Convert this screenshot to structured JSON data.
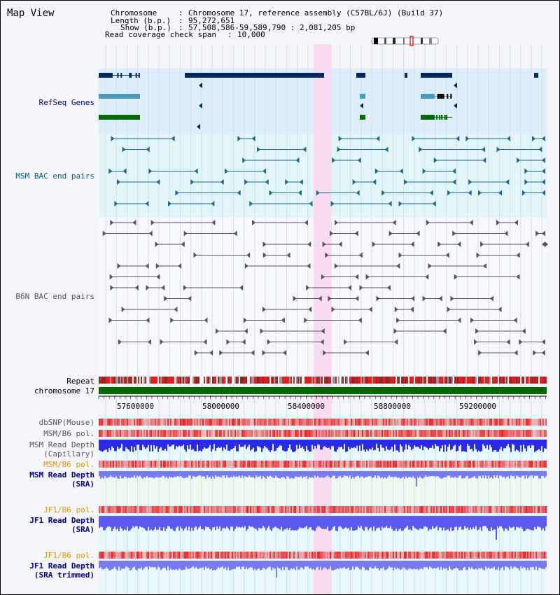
{
  "header": {
    "title": "Map View",
    "chromosome_label": "Chromosome",
    "chromosome_value": "Chromosome 17, reference assembly (C57BL/6J) (Build 37)",
    "length_label": "Length (b.p.)",
    "length_value": "95,272,651",
    "show_label": "Show (b.p.)",
    "show_value": "57,508,586-59,589,790 : 2,081,205 bp",
    "span_label": "Read coverage check span",
    "span_value": "10,000"
  },
  "tracks": {
    "refseq": "RefSeq Genes",
    "msm_bac": "MSM BAC end pairs",
    "b6n_bac": "B6N BAC end pairs",
    "repeat": "Repeat",
    "chromosome": "chromosome 17",
    "dbsnp": "dbSNP(Mouse)",
    "msm_b6_pol_1": "MSM/B6 pol.",
    "msm_depth_cap_1": "MSM Read Depth",
    "msm_depth_cap_2": "(Capillary)",
    "msm_b6_pol_2": "MSM/B6 pol.",
    "msm_depth_sra_1": "MSM Read Depth",
    "msm_depth_sra_2": "(SRA)",
    "jf1_b6_pol_1": "JF1/B6 pol.",
    "jf1_depth_sra_1": "JF1 Read Depth",
    "jf1_depth_sra_2": "(SRA)",
    "jf1_b6_pol_2": "JF1/B6 pol.",
    "jf1_depth_trim_1": "JF1 Read Depth",
    "jf1_depth_trim_2": "(SRA trimmed)"
  },
  "ruler": {
    "ticks": [
      "57600000",
      "58000000",
      "58400000",
      "58800000",
      "59200000"
    ]
  },
  "colors": {
    "refseq_bg": "#dbeefa",
    "msm_bg": "#e2f6fa",
    "highlight": "#f8d8f0",
    "gene_dark": "#002a5c",
    "gene_light": "#4a9ac0",
    "gene_green": "#006a00",
    "msm_feature": "#1a6a8a",
    "b6n_feature": "#555555",
    "chromosome_bar": "#006600",
    "depth_blue": "#2a2ae8",
    "depth_light": "#7a7af0"
  }
}
